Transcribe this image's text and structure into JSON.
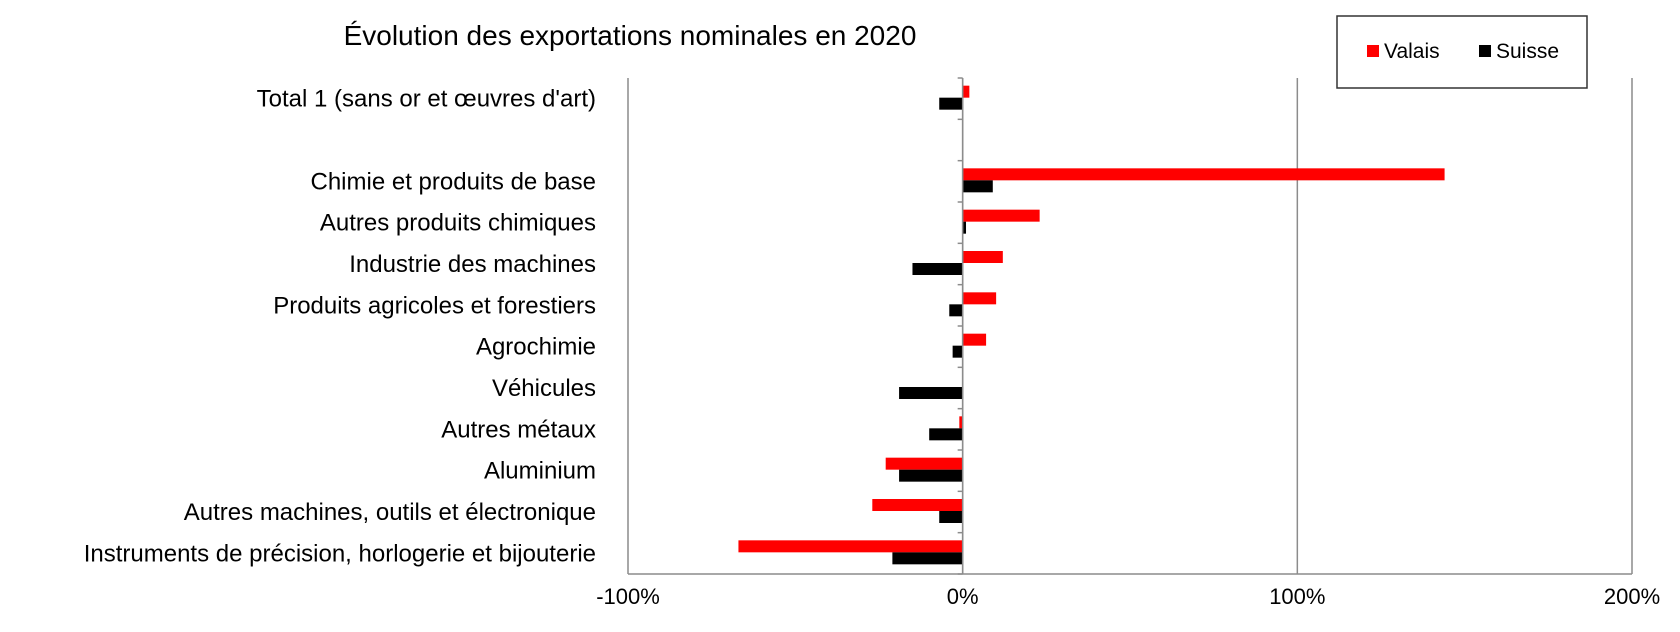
{
  "chart_data": {
    "type": "bar",
    "orientation": "horizontal",
    "title": "Évolution des exportations nominales en 2020",
    "xlabel": "",
    "ylabel": "",
    "xlim": [
      -100,
      200
    ],
    "x_ticks": [
      -100,
      0,
      100,
      200
    ],
    "x_tick_labels": [
      "-100%",
      "0%",
      "100%",
      "200%"
    ],
    "grid": true,
    "legend_position": "top-right",
    "categories": [
      "Total 1 (sans or et œuvres d'art)",
      "",
      "Chimie et produits de base",
      "Autres produits chimiques",
      "Industrie des machines",
      "Produits agricoles et forestiers",
      "Agrochimie",
      "Véhicules",
      "Autres métaux",
      "Aluminium",
      "Autres machines, outils et électronique",
      "Instruments de précision, horlogerie et bijouterie"
    ],
    "series": [
      {
        "name": "Valais",
        "color": "#ff0000",
        "values": [
          2,
          null,
          144,
          23,
          12,
          10,
          7,
          0,
          -1,
          -23,
          -27,
          -67
        ]
      },
      {
        "name": "Suisse",
        "color": "#000000",
        "values": [
          -7,
          null,
          9,
          1,
          -15,
          -4,
          -3,
          -19,
          -10,
          -19,
          -7,
          -21
        ]
      }
    ]
  }
}
